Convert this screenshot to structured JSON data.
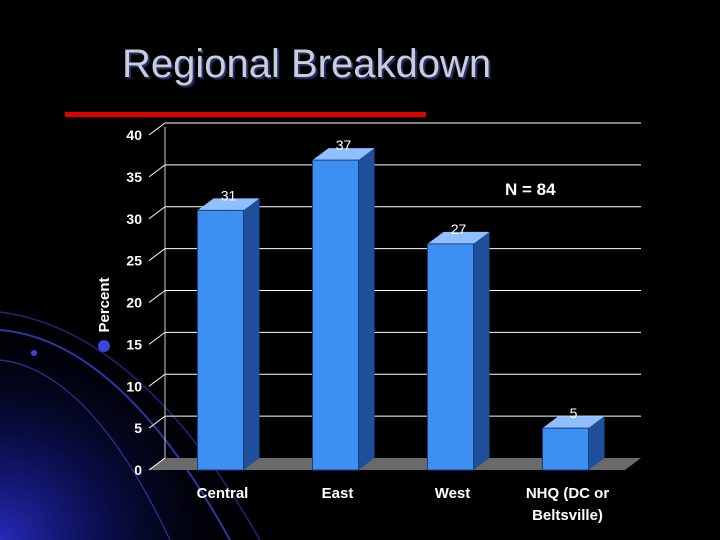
{
  "slide": {
    "title": "Regional Breakdown",
    "note": "N = 84"
  },
  "colors": {
    "background": "#000000",
    "bar_front": "#3d8ff2",
    "bar_side": "#1f4f9a",
    "bar_top": "#8fbfff",
    "rule": "#dd0000",
    "floor": "#6a6a6a"
  },
  "chart_data": {
    "type": "bar",
    "categories": [
      [
        "Central"
      ],
      [
        "East"
      ],
      [
        "West"
      ],
      [
        "NHQ (DC or",
        "Beltsville)"
      ]
    ],
    "values": [
      31,
      37,
      27,
      5
    ],
    "ylabel": "Percent",
    "xlabel": "",
    "ylim": [
      0,
      40
    ],
    "yticks": [
      0,
      5,
      10,
      15,
      20,
      25,
      30,
      35,
      40
    ],
    "grid": true,
    "three_d": true
  }
}
